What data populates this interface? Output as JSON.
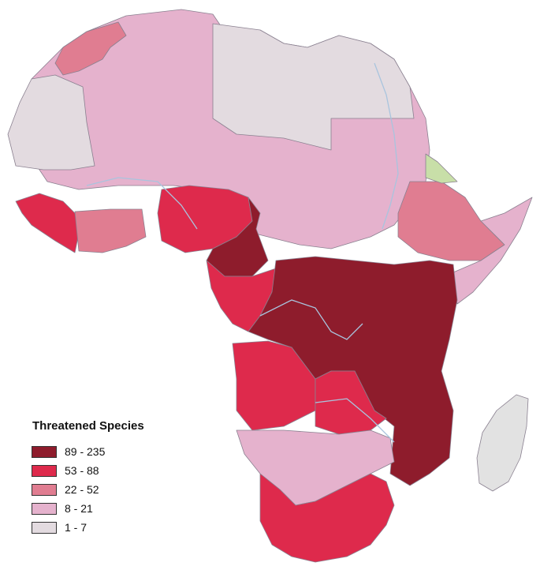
{
  "legend": {
    "title": "Threatened Species",
    "classes": [
      {
        "label": "89 - 235",
        "color": "#8e1c2c"
      },
      {
        "label": "53 - 88",
        "color": "#de2a4c"
      },
      {
        "label": "22 - 52",
        "color": "#e07d91"
      },
      {
        "label": "8 - 21",
        "color": "#e5b2cd"
      },
      {
        "label": "1 - 7",
        "color": "#e3dbe0"
      }
    ]
  },
  "colors": {
    "background": "#ffffff",
    "border": "#8a8090",
    "river": "#a9c4de",
    "green_region": "#c8dfa8",
    "madagascar": "#e2e2e2"
  }
}
